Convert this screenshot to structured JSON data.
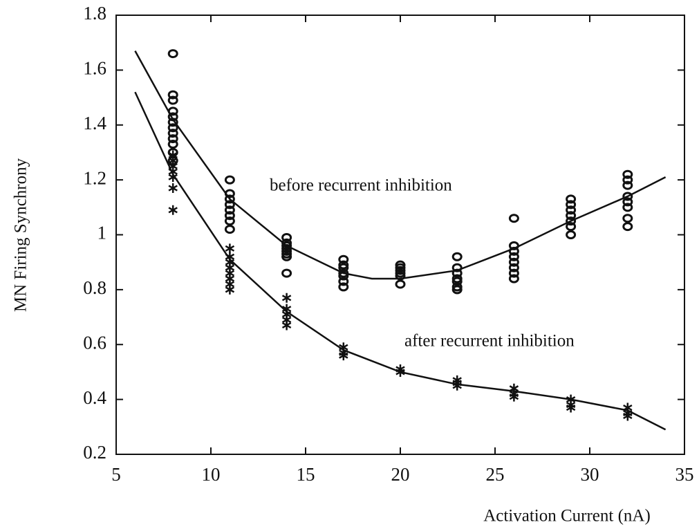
{
  "chart_data": {
    "type": "scatter",
    "xlabel": "Activation Current (nA)",
    "ylabel": "MN Firing Synchrony",
    "xlim": [
      5,
      35
    ],
    "xticks": [
      5,
      10,
      15,
      20,
      25,
      30,
      35
    ],
    "ylim": [
      0.2,
      1.8
    ],
    "yticks": [
      0.2,
      0.4,
      0.6,
      0.8,
      1,
      1.2,
      1.4,
      1.6,
      1.8
    ],
    "annotations": [
      "before recurrent inhibition",
      "after recurrent inhibition"
    ],
    "series": [
      {
        "marker": "circle",
        "color": "#111",
        "x": [
          8,
          8,
          8,
          8,
          8,
          8,
          8,
          8,
          8,
          8,
          8,
          8,
          11,
          11,
          11,
          11,
          11,
          11,
          11,
          11,
          14,
          14,
          14,
          14,
          14,
          14,
          14,
          14,
          17,
          17,
          17,
          17,
          17,
          17,
          17,
          20,
          20,
          20,
          20,
          20,
          20,
          23,
          23,
          23,
          23,
          23,
          23,
          23,
          26,
          26,
          26,
          26,
          26,
          26,
          26,
          26,
          29,
          29,
          29,
          29,
          29,
          29,
          29,
          32,
          32,
          32,
          32,
          32,
          32,
          32,
          32
        ],
        "values": [
          1.66,
          1.51,
          1.49,
          1.45,
          1.43,
          1.41,
          1.39,
          1.37,
          1.35,
          1.33,
          1.3,
          1.27,
          1.2,
          1.15,
          1.13,
          1.11,
          1.09,
          1.07,
          1.05,
          1.02,
          0.99,
          0.97,
          0.96,
          0.95,
          0.94,
          0.93,
          0.92,
          0.86,
          0.91,
          0.89,
          0.88,
          0.86,
          0.85,
          0.83,
          0.81,
          0.89,
          0.88,
          0.87,
          0.86,
          0.85,
          0.82,
          0.92,
          0.88,
          0.86,
          0.84,
          0.83,
          0.81,
          0.8,
          1.06,
          0.96,
          0.94,
          0.92,
          0.9,
          0.88,
          0.86,
          0.84,
          1.13,
          1.11,
          1.09,
          1.07,
          1.05,
          1.03,
          1.0,
          1.22,
          1.2,
          1.18,
          1.14,
          1.12,
          1.1,
          1.06,
          1.03
        ]
      },
      {
        "marker": "asterisk",
        "color": "#111",
        "x": [
          8,
          8,
          8,
          8,
          8,
          8,
          8,
          11,
          11,
          11,
          11,
          11,
          11,
          11,
          11,
          14,
          14,
          14,
          14,
          14,
          17,
          17,
          17,
          20,
          20,
          23,
          23,
          23,
          26,
          26,
          26,
          29,
          29,
          29,
          32,
          32,
          32
        ],
        "values": [
          1.29,
          1.27,
          1.25,
          1.23,
          1.21,
          1.17,
          1.09,
          0.95,
          0.92,
          0.9,
          0.88,
          0.86,
          0.84,
          0.82,
          0.8,
          0.77,
          0.73,
          0.71,
          0.69,
          0.67,
          0.59,
          0.57,
          0.56,
          0.51,
          0.5,
          0.47,
          0.46,
          0.45,
          0.44,
          0.42,
          0.41,
          0.4,
          0.38,
          0.37,
          0.37,
          0.35,
          0.34
        ]
      },
      {
        "marker": "line",
        "color": "#111",
        "x": [
          6,
          8,
          11,
          14,
          17,
          18.5,
          20,
          23,
          26,
          29,
          32,
          34
        ],
        "values": [
          1.67,
          1.42,
          1.13,
          0.96,
          0.86,
          0.84,
          0.84,
          0.87,
          0.95,
          1.05,
          1.14,
          1.21
        ]
      },
      {
        "marker": "line",
        "color": "#111",
        "x": [
          6,
          8,
          11,
          14,
          17,
          20,
          23,
          26,
          29,
          32,
          34
        ],
        "values": [
          1.52,
          1.22,
          0.91,
          0.72,
          0.58,
          0.5,
          0.455,
          0.43,
          0.4,
          0.36,
          0.29
        ]
      }
    ]
  }
}
